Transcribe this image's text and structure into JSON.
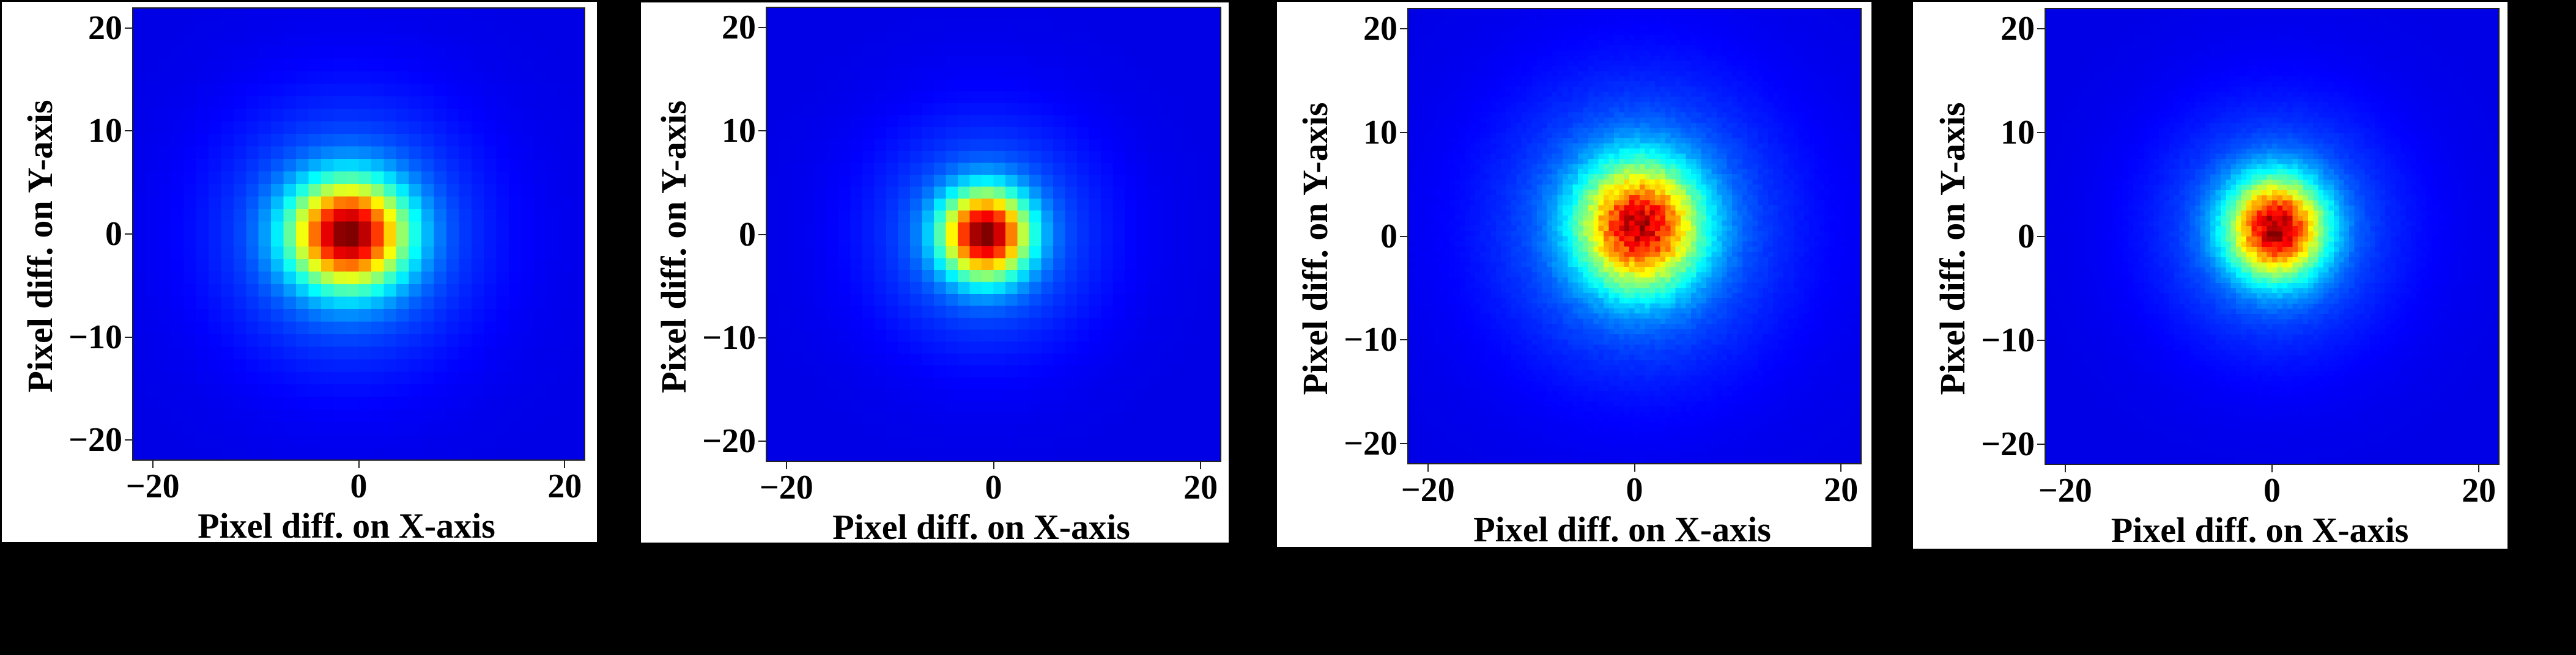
{
  "chart_data": [
    {
      "type": "heatmap",
      "title": "",
      "xlabel": "Pixel diff. on X-axis",
      "ylabel": "Pixel diff. on Y-axis",
      "xlim": [
        -22,
        22
      ],
      "ylim": [
        -22,
        22
      ],
      "xticks": [
        "-20",
        "0",
        "20"
      ],
      "yticks": [
        "20",
        "10",
        "0",
        "-10",
        "-20"
      ],
      "colormap": "jet",
      "bins": 36,
      "peak_center": {
        "x": -1.0,
        "y": 0.0
      },
      "spread_sigma": {
        "x": 3.6,
        "y": 3.3
      },
      "halo_sigma": 8.0,
      "halo_weight": 0.16,
      "noise": 0.0,
      "grid": false,
      "legend": "none"
    },
    {
      "type": "heatmap",
      "title": "",
      "xlabel": "Pixel diff. on X-axis",
      "ylabel": "Pixel diff. on Y-axis",
      "xlim": [
        -22,
        22
      ],
      "ylim": [
        -22,
        22
      ],
      "xticks": [
        "-20",
        "0",
        "20"
      ],
      "yticks": [
        "20",
        "10",
        "0",
        "-10",
        "-20"
      ],
      "colormap": "jet",
      "bins": 38,
      "peak_center": {
        "x": -0.8,
        "y": 0.0
      },
      "spread_sigma": {
        "x": 2.7,
        "y": 2.7
      },
      "halo_sigma": 7.0,
      "halo_weight": 0.14,
      "noise": 0.0,
      "grid": false,
      "legend": "none"
    },
    {
      "type": "heatmap",
      "title": "",
      "xlabel": "Pixel diff. on X-axis",
      "ylabel": "Pixel diff. on Y-axis",
      "xlim": [
        -22,
        22
      ],
      "ylim": [
        -22,
        22
      ],
      "xticks": [
        "-20",
        "0",
        "20"
      ],
      "yticks": [
        "20",
        "10",
        "0",
        "-10",
        "-20"
      ],
      "colormap": "jet",
      "bins": 88,
      "peak_center": {
        "x": 0.5,
        "y": 1.0
      },
      "spread_sigma": {
        "x": 3.8,
        "y": 3.9
      },
      "halo_sigma": 9.0,
      "halo_weight": 0.18,
      "noise": 0.1,
      "grid": false,
      "legend": "none"
    },
    {
      "type": "heatmap",
      "title": "",
      "xlabel": "Pixel diff. on X-axis",
      "ylabel": "Pixel diff. on Y-axis",
      "xlim": [
        -22,
        22
      ],
      "ylim": [
        -22,
        22
      ],
      "xticks": [
        "-20",
        "0",
        "20"
      ],
      "yticks": [
        "20",
        "10",
        "0",
        "-10",
        "-20"
      ],
      "colormap": "jet",
      "bins": 88,
      "peak_center": {
        "x": 0.4,
        "y": 0.8
      },
      "spread_sigma": {
        "x": 3.0,
        "y": 3.1
      },
      "halo_sigma": 7.5,
      "halo_weight": 0.15,
      "noise": 0.09,
      "grid": false,
      "legend": "none"
    }
  ],
  "colors": {
    "background": "#000000",
    "card": "#ffffff",
    "plot_low": "#00007f",
    "plot_high": "#7f0000"
  }
}
